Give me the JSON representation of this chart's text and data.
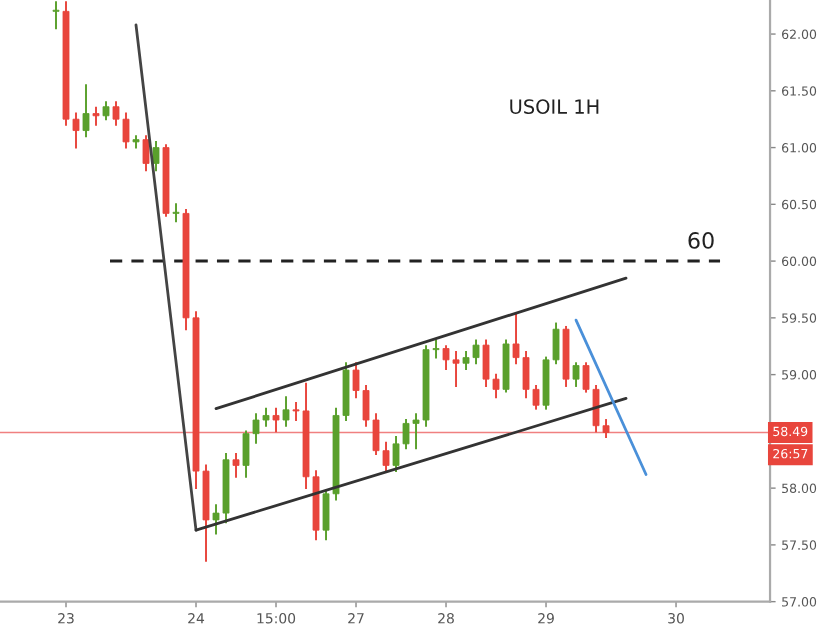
{
  "chart_data": {
    "type": "candlestick",
    "categories": [
      null,
      "23",
      null,
      null,
      null,
      null,
      null,
      null,
      null,
      null,
      null,
      null,
      null,
      null,
      "24",
      null,
      null,
      null,
      null,
      null,
      null,
      null,
      "15:00",
      null,
      null,
      null,
      null,
      null,
      null,
      null,
      "27",
      null,
      null,
      null,
      null,
      null,
      null,
      null,
      null,
      "28",
      null,
      null,
      null,
      null,
      null,
      null,
      null,
      null,
      null,
      "29",
      null,
      null,
      null,
      null,
      null,
      null,
      null,
      null,
      null,
      null,
      null,
      null,
      "30",
      null,
      null,
      null,
      null,
      null,
      null,
      null,
      null,
      null
    ],
    "ohlc": [
      [
        62.2,
        62.28,
        62.05,
        62.2
      ],
      [
        62.2,
        62.28,
        61.2,
        61.25
      ],
      [
        61.25,
        61.3,
        61.0,
        61.15
      ],
      [
        61.15,
        61.55,
        61.1,
        61.3
      ],
      [
        61.3,
        61.35,
        61.2,
        61.28
      ],
      [
        61.28,
        61.4,
        61.25,
        61.36
      ],
      [
        61.36,
        61.4,
        61.2,
        61.25
      ],
      [
        61.25,
        61.3,
        61.0,
        61.05
      ],
      [
        61.05,
        61.1,
        61.0,
        61.07
      ],
      [
        61.07,
        61.1,
        60.8,
        60.86
      ],
      [
        60.86,
        61.05,
        60.8,
        61.0
      ],
      [
        61.0,
        61.02,
        60.4,
        60.42
      ],
      [
        60.42,
        60.5,
        60.35,
        60.42
      ],
      [
        60.42,
        60.45,
        59.4,
        59.5
      ],
      [
        59.5,
        59.55,
        58.0,
        58.15
      ],
      [
        58.15,
        58.2,
        57.36,
        57.72
      ],
      [
        57.72,
        57.85,
        57.6,
        57.78
      ],
      [
        57.78,
        58.3,
        57.7,
        58.25
      ],
      [
        58.25,
        58.3,
        58.1,
        58.2
      ],
      [
        58.2,
        58.5,
        58.1,
        58.48
      ],
      [
        58.48,
        58.65,
        58.4,
        58.6
      ],
      [
        58.6,
        58.7,
        58.55,
        58.64
      ],
      [
        58.64,
        58.7,
        58.5,
        58.6
      ],
      [
        58.6,
        58.8,
        58.55,
        58.69
      ],
      [
        58.69,
        58.75,
        58.6,
        58.68
      ],
      [
        58.68,
        58.92,
        58.0,
        58.1
      ],
      [
        58.1,
        58.15,
        57.55,
        57.63
      ],
      [
        57.63,
        57.98,
        57.55,
        57.95
      ],
      [
        57.95,
        58.7,
        57.9,
        58.64
      ],
      [
        58.64,
        59.1,
        58.6,
        59.04
      ],
      [
        59.04,
        59.1,
        58.8,
        58.86
      ],
      [
        58.86,
        58.9,
        58.55,
        58.6
      ],
      [
        58.6,
        58.65,
        58.3,
        58.33
      ],
      [
        58.33,
        58.4,
        58.15,
        58.2
      ],
      [
        58.2,
        58.45,
        58.15,
        58.39
      ],
      [
        58.39,
        58.6,
        58.35,
        58.57
      ],
      [
        58.57,
        58.65,
        58.35,
        58.6
      ],
      [
        58.6,
        59.25,
        58.55,
        59.22
      ],
      [
        59.22,
        59.3,
        59.15,
        59.23
      ],
      [
        59.23,
        59.25,
        59.05,
        59.13
      ],
      [
        59.13,
        59.2,
        58.9,
        59.1
      ],
      [
        59.1,
        59.2,
        59.05,
        59.15
      ],
      [
        59.15,
        59.3,
        59.1,
        59.26
      ],
      [
        59.26,
        59.3,
        58.9,
        58.96
      ],
      [
        58.96,
        59.0,
        58.8,
        58.87
      ],
      [
        58.87,
        59.3,
        58.85,
        59.27
      ],
      [
        59.27,
        59.53,
        59.1,
        59.15
      ],
      [
        59.15,
        59.2,
        58.8,
        58.87
      ],
      [
        58.87,
        58.9,
        58.7,
        58.73
      ],
      [
        58.73,
        59.15,
        58.7,
        59.13
      ],
      [
        59.13,
        59.45,
        59.1,
        59.4
      ],
      [
        59.4,
        59.42,
        58.9,
        58.96
      ],
      [
        58.96,
        59.1,
        58.9,
        59.08
      ],
      [
        59.08,
        59.1,
        58.85,
        58.87
      ],
      [
        58.87,
        58.9,
        58.5,
        58.55
      ],
      [
        58.55,
        58.6,
        58.45,
        58.49
      ],
      null,
      null,
      null,
      null,
      null,
      null,
      null,
      null,
      null,
      null,
      null,
      null,
      null,
      null,
      null,
      null
    ],
    "colors": [
      "#5aa02c",
      "#e8453c",
      "#e8453c",
      "#5aa02c",
      "#e8453c",
      "#5aa02c",
      "#e8453c",
      "#e8453c",
      "#5aa02c",
      "#e8453c",
      "#5aa02c",
      "#e8453c",
      "#5aa02c",
      "#e8453c",
      "#e8453c",
      "#e8453c",
      "#5aa02c",
      "#5aa02c",
      "#e8453c",
      "#5aa02c",
      "#5aa02c",
      "#5aa02c",
      "#e8453c",
      "#5aa02c",
      "#e8453c",
      "#e8453c",
      "#e8453c",
      "#5aa02c",
      "#5aa02c",
      "#5aa02c",
      "#e8453c",
      "#e8453c",
      "#e8453c",
      "#e8453c",
      "#5aa02c",
      "#5aa02c",
      "#5aa02c",
      "#5aa02c",
      "#5aa02c",
      "#e8453c",
      "#e8453c",
      "#5aa02c",
      "#5aa02c",
      "#e8453c",
      "#e8453c",
      "#5aa02c",
      "#e8453c",
      "#e8453c",
      "#e8453c",
      "#5aa02c",
      "#5aa02c",
      "#e8453c",
      "#5aa02c",
      "#e8453c",
      "#e8453c",
      "#e8453c",
      null,
      null,
      null,
      null,
      null,
      null,
      null,
      null,
      null,
      null,
      null,
      null,
      null,
      null,
      null,
      null
    ],
    "series": [
      {
        "type": "line",
        "color": "#444444",
        "values": [
          null,
          null,
          null,
          null,
          null,
          null,
          null,
          null,
          62.08,
          null,
          null,
          null,
          null,
          null,
          57.63,
          null,
          null,
          null,
          null,
          null,
          null,
          null,
          null,
          null,
          null,
          null,
          null,
          null,
          null,
          null,
          null,
          null,
          null,
          null,
          null,
          null,
          null,
          null,
          null,
          null,
          null,
          null,
          null,
          null,
          null,
          null,
          null,
          null,
          null,
          null,
          null,
          null,
          null,
          null,
          null,
          null,
          null,
          null,
          null,
          null,
          null,
          null,
          null,
          null,
          null,
          null,
          null,
          null,
          null,
          null,
          null,
          null
        ]
      },
      {
        "type": "line",
        "color": "#333333",
        "values": [
          null,
          null,
          null,
          null,
          null,
          null,
          null,
          null,
          null,
          null,
          null,
          null,
          null,
          null,
          57.63,
          null,
          null,
          null,
          null,
          null,
          null,
          null,
          null,
          null,
          null,
          null,
          null,
          null,
          null,
          null,
          null,
          null,
          null,
          null,
          null,
          null,
          null,
          null,
          null,
          null,
          null,
          null,
          null,
          null,
          null,
          null,
          null,
          null,
          null,
          null,
          null,
          null,
          null,
          null,
          null,
          null,
          null,
          58.79,
          null,
          null,
          null,
          null,
          null,
          null,
          null,
          null,
          null,
          null,
          null,
          null,
          null,
          null
        ]
      },
      {
        "type": "line",
        "color": "#333333",
        "values": [
          null,
          null,
          null,
          null,
          null,
          null,
          null,
          null,
          null,
          null,
          null,
          null,
          null,
          null,
          null,
          null,
          58.7,
          null,
          null,
          null,
          null,
          null,
          null,
          null,
          null,
          null,
          null,
          null,
          null,
          null,
          null,
          null,
          null,
          null,
          null,
          null,
          null,
          null,
          null,
          null,
          null,
          null,
          null,
          null,
          null,
          null,
          null,
          null,
          null,
          null,
          null,
          null,
          null,
          null,
          null,
          null,
          null,
          59.85,
          null,
          null,
          null,
          null,
          null,
          null,
          null,
          null,
          null,
          null,
          null,
          null,
          null,
          null
        ]
      },
      {
        "type": "line",
        "color": "#4a90d9",
        "values": [
          null,
          null,
          null,
          null,
          null,
          null,
          null,
          null,
          null,
          null,
          null,
          null,
          null,
          null,
          null,
          null,
          null,
          null,
          null,
          null,
          null,
          null,
          null,
          null,
          null,
          null,
          null,
          null,
          null,
          null,
          null,
          null,
          null,
          null,
          null,
          null,
          null,
          null,
          null,
          null,
          null,
          null,
          null,
          null,
          null,
          null,
          null,
          null,
          null,
          null,
          null,
          null,
          59.48,
          null,
          null,
          null,
          null,
          null,
          null,
          58.12,
          null,
          null,
          null,
          null,
          null,
          null,
          null,
          null,
          null,
          null,
          null,
          null
        ]
      }
    ],
    "ylim": [
      57.0,
      62.3
    ],
    "yticks": [
      {
        "value": 57,
        "label": "57.00"
      },
      {
        "value": 57.5,
        "label": "57.50"
      },
      {
        "value": 58,
        "label": "58.00"
      },
      {
        "value": 58.5,
        "label": null
      },
      {
        "value": 59,
        "label": "59.00"
      },
      {
        "value": 59.5,
        "label": "59.50"
      },
      {
        "value": 60,
        "label": "60.00"
      },
      {
        "value": 60.5,
        "label": "60.50"
      },
      {
        "value": 61,
        "label": "61.00"
      },
      {
        "value": 61.5,
        "label": "61.50"
      },
      {
        "value": 62,
        "label": "62.00"
      }
    ],
    "ref_lines": [
      {
        "axis": "y",
        "value": 60,
        "label": "60",
        "color": "#222222",
        "line_style": "dashed"
      },
      {
        "axis": "y",
        "value": 58.49,
        "label": "58.49",
        "color": "#f08080",
        "line_style": "solid"
      }
    ],
    "annotations": [
      "USOIL 1H",
      "26:57"
    ],
    "grid": false,
    "legend": false
  }
}
